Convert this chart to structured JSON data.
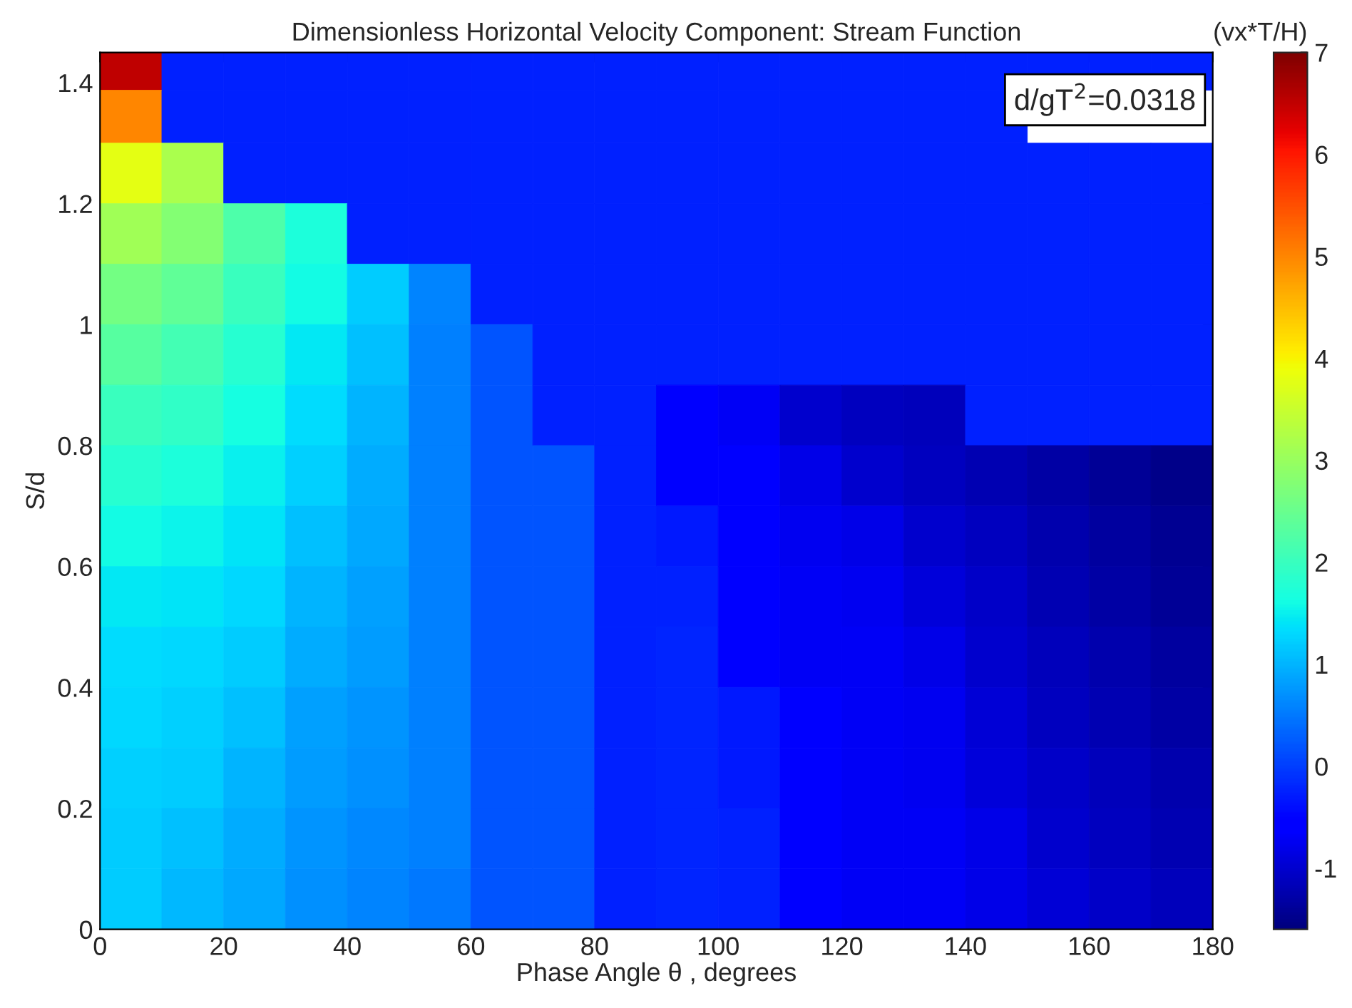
{
  "chart_data": {
    "type": "heatmap",
    "title": "Dimensionless Horizontal Velocity Component: Stream Function",
    "xlabel": "Phase Angle θ , degrees",
    "ylabel": "S/d",
    "clabel": "(vx*T/H)",
    "annotations": [
      "d/gT$^{2}$=0.0318"
    ],
    "x": [
      5,
      15,
      25,
      35,
      45,
      55,
      65,
      75,
      85,
      95,
      105,
      115,
      125,
      135,
      145,
      155,
      165,
      175
    ],
    "y": [
      1.425,
      1.35,
      1.25,
      1.15,
      1.05,
      0.95,
      0.85,
      0.75,
      0.65,
      0.55,
      0.45,
      0.35,
      0.25,
      0.15,
      0.05
    ],
    "cells": [
      [
        6.5,
        -0.25,
        -0.25,
        -0.25,
        -0.25,
        -0.25,
        -0.25,
        -0.25,
        -0.25,
        -0.25,
        -0.25,
        -0.25,
        -0.25,
        -0.25,
        -0.25,
        -0.25,
        -0.25,
        -0.25
      ],
      [
        5.0,
        -0.25,
        -0.25,
        -0.25,
        -0.25,
        -0.25,
        -0.25,
        -0.25,
        -0.25,
        -0.25,
        -0.25,
        -0.25,
        -0.25,
        -0.25,
        -0.25,
        null,
        null,
        null
      ],
      [
        3.8,
        3.2,
        -0.25,
        -0.25,
        -0.25,
        -0.25,
        -0.25,
        -0.25,
        -0.25,
        -0.25,
        -0.25,
        -0.25,
        -0.25,
        -0.25,
        -0.25,
        -0.25,
        -0.25,
        -0.25
      ],
      [
        3.1,
        2.8,
        2.2,
        1.7,
        -0.25,
        -0.25,
        -0.25,
        -0.25,
        -0.25,
        -0.25,
        -0.25,
        -0.25,
        -0.25,
        -0.25,
        -0.25,
        -0.25,
        -0.25,
        -0.25
      ],
      [
        2.6,
        2.4,
        2.0,
        1.6,
        1.2,
        0.6,
        -0.25,
        -0.25,
        -0.25,
        -0.25,
        -0.25,
        -0.25,
        -0.25,
        -0.25,
        -0.25,
        -0.25,
        -0.25,
        -0.25
      ],
      [
        2.3,
        2.1,
        1.8,
        1.45,
        1.1,
        0.55,
        0.2,
        -0.25,
        -0.25,
        -0.25,
        -0.25,
        -0.25,
        -0.25,
        -0.25,
        -0.25,
        -0.25,
        -0.25,
        -0.25
      ],
      [
        2.0,
        1.9,
        1.65,
        1.35,
        1.0,
        0.55,
        0.2,
        -0.25,
        -0.25,
        -0.6,
        -0.7,
        -1.0,
        -1.1,
        -1.15,
        -0.25,
        -0.25,
        -0.25,
        -0.25
      ],
      [
        1.8,
        1.7,
        1.5,
        1.25,
        0.95,
        0.55,
        0.2,
        0.2,
        -0.25,
        -0.6,
        -0.65,
        -0.8,
        -1.0,
        -1.1,
        -1.2,
        -1.3,
        -1.4,
        -1.5
      ],
      [
        1.6,
        1.55,
        1.4,
        1.1,
        0.9,
        0.55,
        0.2,
        0.2,
        -0.25,
        -0.3,
        -0.6,
        -0.75,
        -0.8,
        -1.0,
        -1.1,
        -1.25,
        -1.35,
        -1.45
      ],
      [
        1.45,
        1.4,
        1.3,
        1.0,
        0.85,
        0.55,
        0.2,
        0.2,
        -0.25,
        -0.25,
        -0.55,
        -0.7,
        -0.75,
        -0.9,
        -1.05,
        -1.2,
        -1.3,
        -1.4
      ],
      [
        1.35,
        1.3,
        1.2,
        0.95,
        0.8,
        0.55,
        0.2,
        0.2,
        -0.25,
        -0.2,
        -0.5,
        -0.7,
        -0.7,
        -0.8,
        -1.0,
        -1.15,
        -1.25,
        -1.35
      ],
      [
        1.3,
        1.25,
        1.1,
        0.85,
        0.75,
        0.55,
        0.2,
        0.2,
        -0.25,
        -0.2,
        -0.3,
        -0.65,
        -0.7,
        -0.75,
        -0.95,
        -1.1,
        -1.2,
        -1.3
      ],
      [
        1.25,
        1.2,
        1.0,
        0.8,
        0.7,
        0.55,
        0.2,
        0.2,
        -0.25,
        -0.2,
        -0.3,
        -0.65,
        -0.7,
        -0.75,
        -0.9,
        -1.05,
        -1.15,
        -1.25
      ],
      [
        1.2,
        1.1,
        0.95,
        0.75,
        0.65,
        0.55,
        0.2,
        0.2,
        -0.25,
        -0.2,
        -0.25,
        -0.6,
        -0.7,
        -0.7,
        -0.8,
        -1.0,
        -1.1,
        -1.2
      ],
      [
        1.2,
        1.05,
        0.9,
        0.7,
        0.6,
        0.5,
        0.2,
        0.2,
        -0.25,
        -0.2,
        -0.25,
        -0.6,
        -0.7,
        -0.7,
        -0.8,
        -0.95,
        -1.05,
        -1.15
      ]
    ],
    "xlim": [
      0,
      180
    ],
    "xticks": [
      0,
      20,
      40,
      60,
      80,
      100,
      120,
      140,
      160,
      180
    ],
    "ylim": [
      0,
      1.45
    ],
    "yticks": [
      0,
      0.2,
      0.4,
      0.6,
      0.8,
      1,
      1.2,
      1.4
    ],
    "clim": [
      -1.6,
      7
    ],
    "cticks": [
      -1,
      0,
      1,
      2,
      3,
      4,
      5,
      6,
      7
    ]
  }
}
